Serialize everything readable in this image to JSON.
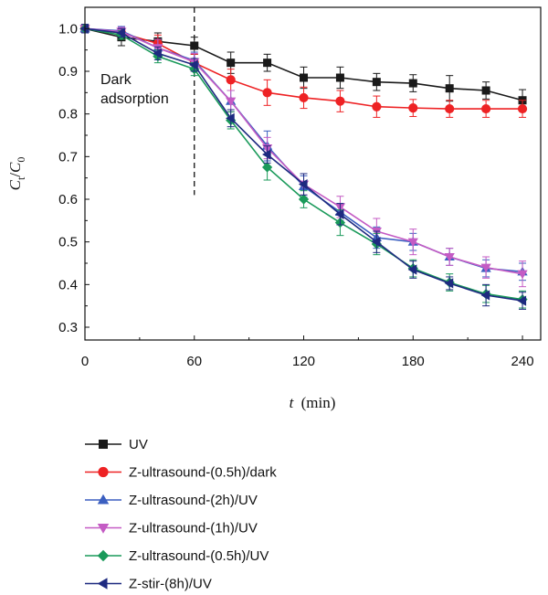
{
  "chart_data": {
    "type": "line",
    "x": [
      0,
      20,
      40,
      60,
      80,
      100,
      120,
      140,
      160,
      180,
      200,
      220,
      240
    ],
    "xlabel_italic": "t",
    "xlabel_unit": "(min)",
    "ylabel_main": "C",
    "ylabel_sub1": "t",
    "ylabel_sep": "/",
    "ylabel_sub2": "0",
    "xlim": [
      0,
      250
    ],
    "ylim": [
      0.27,
      1.05
    ],
    "xticks": [
      "0",
      "60",
      "120",
      "180",
      "240"
    ],
    "yticks": [
      "0.3",
      "0.4",
      "0.5",
      "0.6",
      "0.7",
      "0.8",
      "0.9",
      "1.0"
    ],
    "annotation": {
      "line1": "Dark",
      "line2": "adsorption",
      "x_line": 60
    },
    "grid": false,
    "legend_position": "bottom",
    "series": [
      {
        "name": "UV",
        "color": "#1a1a1a",
        "marker": "square",
        "values": [
          1.0,
          0.98,
          0.97,
          0.96,
          0.92,
          0.92,
          0.885,
          0.885,
          0.875,
          0.872,
          0.86,
          0.855,
          0.832
        ],
        "errors": [
          0.01,
          0.02,
          0.02,
          0.02,
          0.025,
          0.02,
          0.025,
          0.025,
          0.02,
          0.02,
          0.03,
          0.02,
          0.025
        ]
      },
      {
        "name": "Z-ultrasound-(0.5h)/dark",
        "color": "#ee2224",
        "marker": "circle",
        "values": [
          1.0,
          0.99,
          0.965,
          0.92,
          0.88,
          0.85,
          0.838,
          0.83,
          0.817,
          0.814,
          0.812,
          0.812,
          0.812
        ],
        "errors": [
          0.01,
          0.015,
          0.02,
          0.02,
          0.025,
          0.03,
          0.025,
          0.025,
          0.025,
          0.02,
          0.02,
          0.02,
          0.02
        ]
      },
      {
        "name": "Z-ultrasound-(2h)/UV",
        "color": "#3b5fc0",
        "marker": "triangle-up",
        "values": [
          1.0,
          0.995,
          0.955,
          0.925,
          0.83,
          0.725,
          0.63,
          0.57,
          0.51,
          0.5,
          0.465,
          0.438,
          0.43
        ],
        "errors": [
          0.01,
          0.01,
          0.02,
          0.02,
          0.025,
          0.035,
          0.025,
          0.02,
          0.025,
          0.02,
          0.02,
          0.02,
          0.02
        ]
      },
      {
        "name": "Z-ultrasound-(1h)/UV",
        "color": "#c45bc4",
        "marker": "triangle-down",
        "values": [
          1.0,
          0.993,
          0.955,
          0.922,
          0.83,
          0.72,
          0.635,
          0.582,
          0.525,
          0.5,
          0.465,
          0.44,
          0.425
        ],
        "errors": [
          0.01,
          0.01,
          0.02,
          0.02,
          0.025,
          0.025,
          0.025,
          0.025,
          0.03,
          0.03,
          0.02,
          0.025,
          0.03
        ]
      },
      {
        "name": "Z-ultrasound-(0.5h)/UV",
        "color": "#1a9a5a",
        "marker": "diamond",
        "values": [
          1.0,
          0.985,
          0.935,
          0.905,
          0.785,
          0.675,
          0.6,
          0.545,
          0.495,
          0.438,
          0.405,
          0.378,
          0.365
        ],
        "errors": [
          0.01,
          0.01,
          0.015,
          0.015,
          0.02,
          0.03,
          0.02,
          0.03,
          0.025,
          0.02,
          0.02,
          0.02,
          0.02
        ]
      },
      {
        "name": "Z-stir-(8h)/UV",
        "color": "#1e2a80",
        "marker": "triangle-left",
        "values": [
          1.0,
          0.99,
          0.942,
          0.915,
          0.79,
          0.705,
          0.635,
          0.565,
          0.5,
          0.435,
          0.403,
          0.375,
          0.362
        ],
        "errors": [
          0.01,
          0.01,
          0.015,
          0.015,
          0.02,
          0.02,
          0.025,
          0.025,
          0.025,
          0.02,
          0.015,
          0.025,
          0.02
        ]
      }
    ]
  }
}
